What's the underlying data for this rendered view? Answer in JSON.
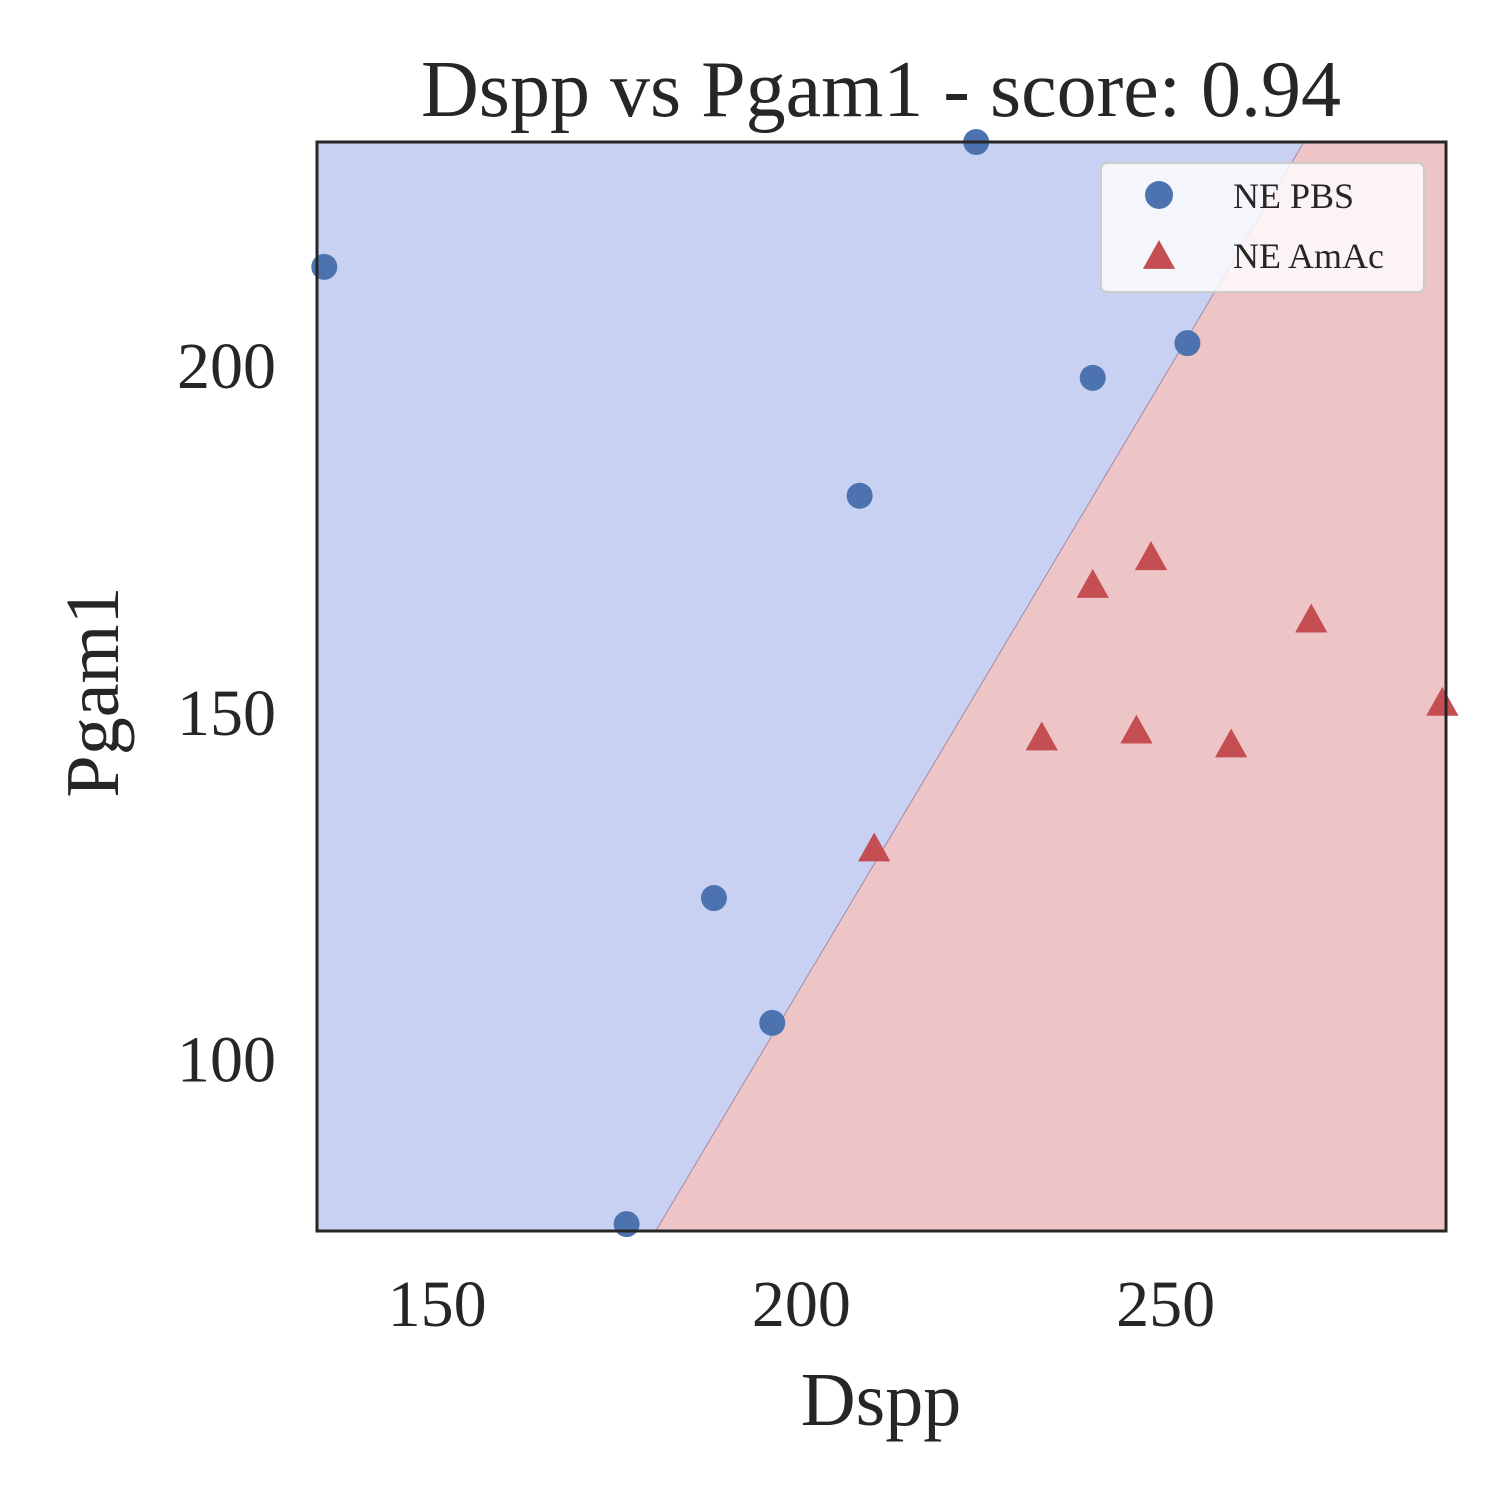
{
  "chart_data": {
    "type": "scatter",
    "title": "Dspp vs Pgam1 - score: 0.94",
    "xlabel": "Dspp",
    "ylabel": "Pgam1",
    "xlim": [
      133.5,
      288.5
    ],
    "ylim": [
      75,
      232
    ],
    "xticks": [
      150,
      200,
      250
    ],
    "yticks": [
      100,
      150,
      200
    ],
    "grid": false,
    "legend_position": "top-right",
    "decision_boundary": {
      "points": [
        [
          180,
          75
        ],
        [
          269,
          232
        ]
      ],
      "colors": {
        "left": "#c8d1f1",
        "right": "#eec5c6",
        "line": "#a38aa6"
      }
    },
    "series": [
      {
        "name": "NE PBS",
        "marker": "circle",
        "color": "#4c72b0",
        "points": [
          [
            134.5,
            214
          ],
          [
            224,
            232
          ],
          [
            253,
            203
          ],
          [
            240,
            198
          ],
          [
            208,
            181
          ],
          [
            188,
            123
          ],
          [
            196,
            105
          ],
          [
            176,
            76
          ]
        ]
      },
      {
        "name": "NE AmAc",
        "marker": "triangle",
        "color": "#c44e52",
        "points": [
          [
            248,
            172
          ],
          [
            240,
            168
          ],
          [
            270,
            163
          ],
          [
            288,
            151
          ],
          [
            246,
            147
          ],
          [
            233,
            146
          ],
          [
            259,
            145
          ],
          [
            210,
            130
          ]
        ]
      }
    ]
  }
}
